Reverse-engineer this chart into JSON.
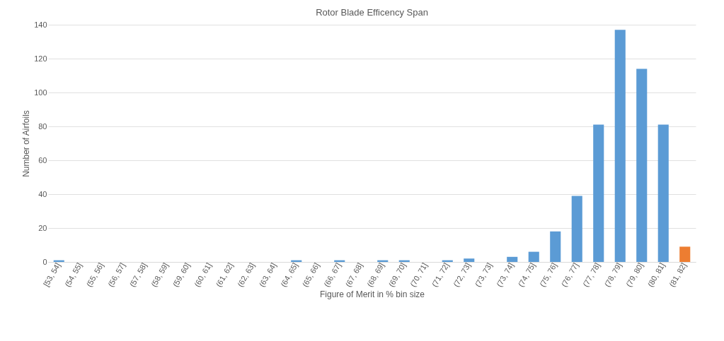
{
  "chart_data": {
    "type": "bar",
    "title": "Rotor Blade Efficency Span",
    "xlabel": "Figure of Merit in % bin size",
    "ylabel": "Number of Airfoils",
    "categories": [
      "[53, 54]",
      "(54, 55]",
      "(55, 56]",
      "(56, 57]",
      "(57, 58]",
      "(58, 59]",
      "(59, 60]",
      "(60, 61]",
      "(61, 62]",
      "(62, 63]",
      "(63, 64]",
      "(64, 65]",
      "(65, 66]",
      "(66, 67]",
      "(67, 68]",
      "(68, 69]",
      "(69, 70]",
      "(70, 71]",
      "(71, 72]",
      "(72, 73]",
      "(73, 73]",
      "(73, 74]",
      "(74, 75]",
      "(75, 76]",
      "(76, 77]",
      "(77, 78]",
      "(78, 79]",
      "(79, 80]",
      "(80, 81]",
      "(81, 82]"
    ],
    "values": [
      1,
      0,
      0,
      0,
      0,
      0,
      0,
      0,
      0,
      0,
      0,
      1,
      0,
      1,
      0,
      1,
      1,
      0,
      1,
      2,
      0,
      3,
      6,
      18,
      39,
      81,
      137,
      114,
      81,
      9
    ],
    "colors": [
      "#5b9bd5",
      "#5b9bd5",
      "#5b9bd5",
      "#5b9bd5",
      "#5b9bd5",
      "#5b9bd5",
      "#5b9bd5",
      "#5b9bd5",
      "#5b9bd5",
      "#5b9bd5",
      "#5b9bd5",
      "#5b9bd5",
      "#5b9bd5",
      "#5b9bd5",
      "#5b9bd5",
      "#5b9bd5",
      "#5b9bd5",
      "#5b9bd5",
      "#5b9bd5",
      "#5b9bd5",
      "#5b9bd5",
      "#5b9bd5",
      "#5b9bd5",
      "#5b9bd5",
      "#5b9bd5",
      "#5b9bd5",
      "#5b9bd5",
      "#5b9bd5",
      "#5b9bd5",
      "#ed7d31"
    ],
    "ylim": [
      0,
      140
    ],
    "yticks": [
      0,
      20,
      40,
      60,
      80,
      100,
      120,
      140
    ],
    "grid": "y"
  }
}
